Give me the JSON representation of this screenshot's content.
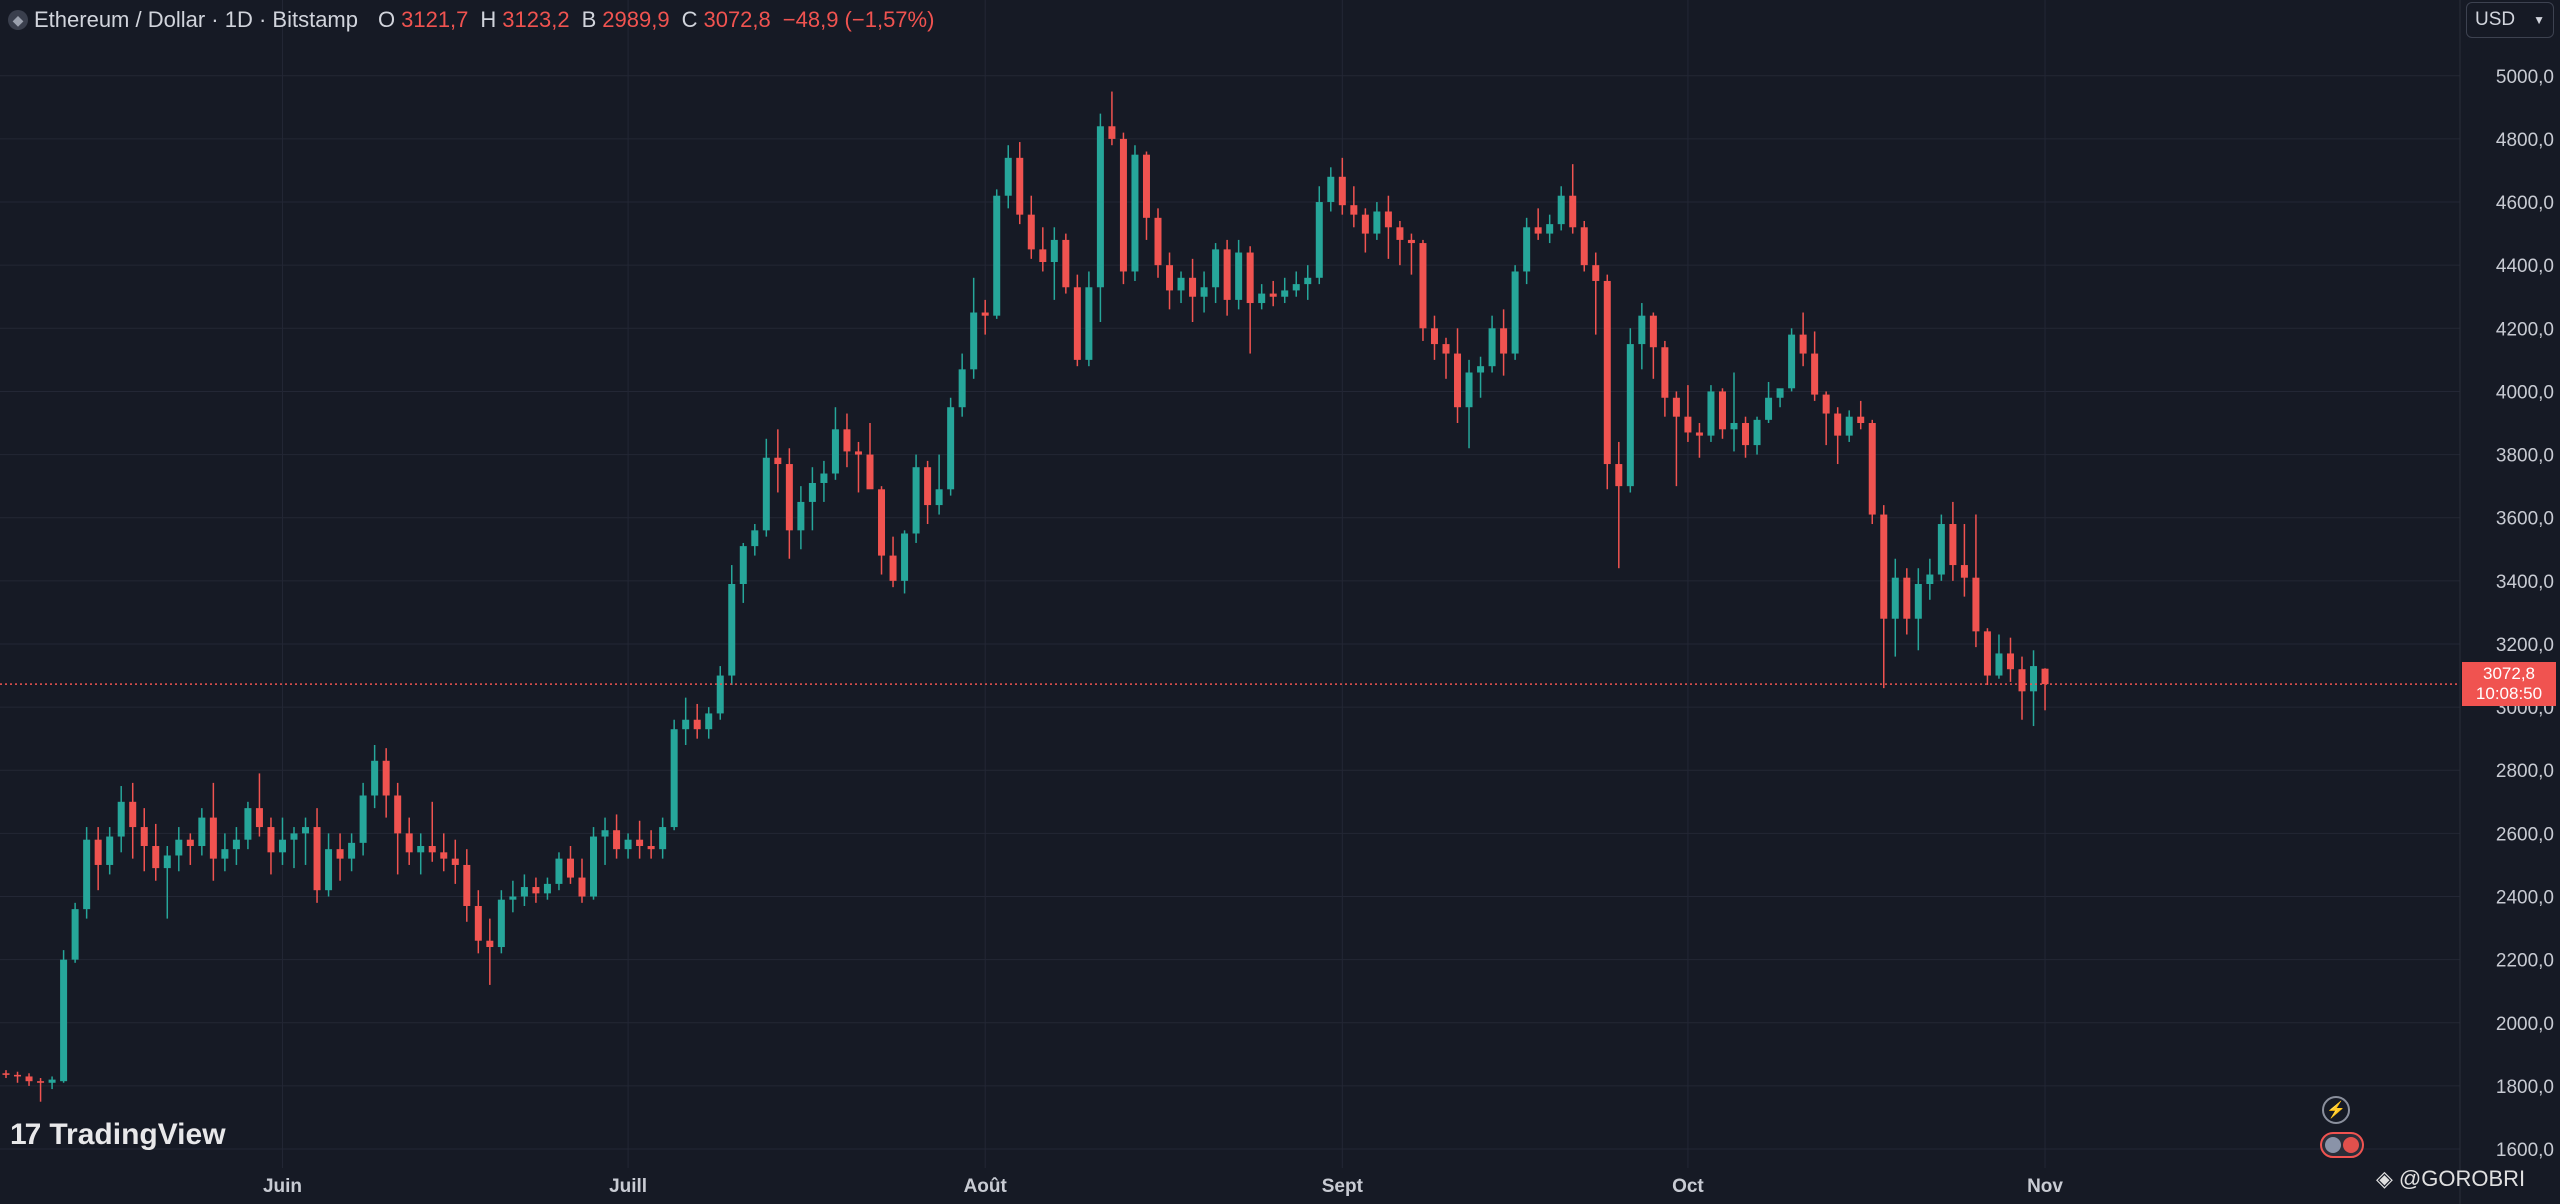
{
  "header": {
    "title": "Ethereum / Dollar · 1D · Bitstamp",
    "open_label": "O",
    "open": "3121,7",
    "high_label": "H",
    "high": "3123,2",
    "low_label": "B",
    "low": "2989,9",
    "close_label": "C",
    "close": "3072,8",
    "change": "−48,9 (−1,57%)"
  },
  "currency": {
    "selected": "USD"
  },
  "logo": {
    "mark": "17",
    "text": "TradingView"
  },
  "watermark": {
    "text": "@GOROBRI"
  },
  "last_price": {
    "value": "3072,8",
    "countdown": "10:08:50"
  },
  "colors": {
    "up": "#26a69a",
    "down": "#f05350",
    "background": "#161a25",
    "grid": "#232735"
  },
  "icons": [
    "ethereum-icon",
    "chevron-down-icon",
    "lightning-icon",
    "flag-icon",
    "binance-icon"
  ],
  "chart_data": {
    "type": "candlestick",
    "title": "Ethereum / Dollar · 1D · Bitstamp",
    "y_ticks": [
      "1600,0",
      "1800,0",
      "2000,0",
      "2200,0",
      "2400,0",
      "2600,0",
      "2800,0",
      "3000,0",
      "3200,0",
      "3400,0",
      "3600,0",
      "3800,0",
      "4000,0",
      "4200,0",
      "4400,0",
      "4600,0",
      "4800,0",
      "5000,0"
    ],
    "ylim": [
      1540,
      5240
    ],
    "x_labels": [
      {
        "label": "Juin",
        "index": 24
      },
      {
        "label": "Juill",
        "index": 54
      },
      {
        "label": "Août",
        "index": 85
      },
      {
        "label": "Sept",
        "index": 116
      },
      {
        "label": "Oct",
        "index": 146
      },
      {
        "label": "Nov",
        "index": 177
      }
    ],
    "last_price": 3072.8,
    "candles": [
      [
        1840,
        1850,
        1825,
        1835
      ],
      [
        1835,
        1845,
        1810,
        1830
      ],
      [
        1830,
        1840,
        1800,
        1815
      ],
      [
        1815,
        1825,
        1750,
        1810
      ],
      [
        1810,
        1830,
        1790,
        1820
      ],
      [
        1815,
        2230,
        1810,
        2200
      ],
      [
        2200,
        2380,
        2190,
        2360
      ],
      [
        2360,
        2620,
        2330,
        2580
      ],
      [
        2580,
        2620,
        2420,
        2500
      ],
      [
        2500,
        2620,
        2470,
        2590
      ],
      [
        2590,
        2750,
        2540,
        2700
      ],
      [
        2700,
        2760,
        2520,
        2620
      ],
      [
        2620,
        2680,
        2480,
        2560
      ],
      [
        2560,
        2630,
        2450,
        2490
      ],
      [
        2490,
        2560,
        2330,
        2530
      ],
      [
        2530,
        2620,
        2480,
        2580
      ],
      [
        2580,
        2600,
        2500,
        2560
      ],
      [
        2560,
        2680,
        2530,
        2650
      ],
      [
        2650,
        2760,
        2450,
        2520
      ],
      [
        2520,
        2600,
        2480,
        2550
      ],
      [
        2550,
        2620,
        2500,
        2580
      ],
      [
        2580,
        2700,
        2550,
        2680
      ],
      [
        2680,
        2790,
        2590,
        2620
      ],
      [
        2620,
        2650,
        2470,
        2540
      ],
      [
        2540,
        2650,
        2500,
        2580
      ],
      [
        2580,
        2620,
        2490,
        2600
      ],
      [
        2600,
        2650,
        2500,
        2620
      ],
      [
        2620,
        2680,
        2380,
        2420
      ],
      [
        2420,
        2600,
        2400,
        2550
      ],
      [
        2550,
        2600,
        2450,
        2520
      ],
      [
        2520,
        2600,
        2480,
        2570
      ],
      [
        2570,
        2760,
        2530,
        2720
      ],
      [
        2720,
        2880,
        2680,
        2830
      ],
      [
        2830,
        2870,
        2650,
        2720
      ],
      [
        2720,
        2760,
        2470,
        2600
      ],
      [
        2600,
        2650,
        2500,
        2540
      ],
      [
        2540,
        2600,
        2470,
        2560
      ],
      [
        2560,
        2700,
        2510,
        2540
      ],
      [
        2540,
        2600,
        2480,
        2520
      ],
      [
        2520,
        2580,
        2440,
        2500
      ],
      [
        2500,
        2550,
        2320,
        2370
      ],
      [
        2370,
        2420,
        2220,
        2260
      ],
      [
        2260,
        2330,
        2120,
        2240
      ],
      [
        2240,
        2420,
        2220,
        2390
      ],
      [
        2390,
        2450,
        2350,
        2400
      ],
      [
        2400,
        2470,
        2370,
        2430
      ],
      [
        2430,
        2460,
        2380,
        2410
      ],
      [
        2410,
        2460,
        2390,
        2440
      ],
      [
        2440,
        2540,
        2420,
        2520
      ],
      [
        2520,
        2560,
        2440,
        2460
      ],
      [
        2460,
        2520,
        2380,
        2400
      ],
      [
        2400,
        2620,
        2390,
        2590
      ],
      [
        2590,
        2650,
        2500,
        2610
      ],
      [
        2610,
        2660,
        2520,
        2550
      ],
      [
        2550,
        2600,
        2520,
        2580
      ],
      [
        2580,
        2640,
        2520,
        2560
      ],
      [
        2560,
        2610,
        2520,
        2550
      ],
      [
        2550,
        2650,
        2520,
        2620
      ],
      [
        2620,
        2960,
        2610,
        2930
      ],
      [
        2930,
        3030,
        2880,
        2960
      ],
      [
        2960,
        3010,
        2900,
        2930
      ],
      [
        2930,
        3000,
        2900,
        2980
      ],
      [
        2980,
        3130,
        2960,
        3100
      ],
      [
        3100,
        3450,
        3070,
        3390
      ],
      [
        3390,
        3520,
        3330,
        3510
      ],
      [
        3510,
        3580,
        3480,
        3560
      ],
      [
        3560,
        3850,
        3540,
        3790
      ],
      [
        3790,
        3880,
        3680,
        3770
      ],
      [
        3770,
        3820,
        3470,
        3560
      ],
      [
        3560,
        3700,
        3500,
        3650
      ],
      [
        3650,
        3760,
        3560,
        3710
      ],
      [
        3710,
        3780,
        3650,
        3740
      ],
      [
        3740,
        3950,
        3720,
        3880
      ],
      [
        3880,
        3930,
        3760,
        3810
      ],
      [
        3810,
        3840,
        3680,
        3800
      ],
      [
        3800,
        3900,
        3700,
        3690
      ],
      [
        3690,
        3700,
        3420,
        3480
      ],
      [
        3480,
        3540,
        3380,
        3400
      ],
      [
        3400,
        3560,
        3360,
        3550
      ],
      [
        3550,
        3800,
        3520,
        3760
      ],
      [
        3760,
        3780,
        3580,
        3640
      ],
      [
        3640,
        3800,
        3610,
        3690
      ],
      [
        3690,
        3980,
        3670,
        3950
      ],
      [
        3950,
        4120,
        3920,
        4070
      ],
      [
        4070,
        4360,
        4040,
        4250
      ],
      [
        4250,
        4290,
        4180,
        4240
      ],
      [
        4240,
        4640,
        4230,
        4620
      ],
      [
        4620,
        4780,
        4580,
        4740
      ],
      [
        4740,
        4790,
        4530,
        4560
      ],
      [
        4560,
        4620,
        4420,
        4450
      ],
      [
        4450,
        4520,
        4380,
        4410
      ],
      [
        4410,
        4520,
        4290,
        4480
      ],
      [
        4480,
        4500,
        4310,
        4330
      ],
      [
        4330,
        4370,
        4080,
        4100
      ],
      [
        4100,
        4380,
        4080,
        4330
      ],
      [
        4330,
        4880,
        4220,
        4840
      ],
      [
        4840,
        4950,
        4780,
        4800
      ],
      [
        4800,
        4820,
        4340,
        4380
      ],
      [
        4380,
        4780,
        4350,
        4750
      ],
      [
        4750,
        4760,
        4480,
        4550
      ],
      [
        4550,
        4580,
        4360,
        4400
      ],
      [
        4400,
        4440,
        4260,
        4320
      ],
      [
        4320,
        4380,
        4280,
        4360
      ],
      [
        4360,
        4420,
        4220,
        4300
      ],
      [
        4300,
        4380,
        4250,
        4330
      ],
      [
        4330,
        4470,
        4280,
        4450
      ],
      [
        4450,
        4480,
        4240,
        4290
      ],
      [
        4290,
        4480,
        4260,
        4440
      ],
      [
        4440,
        4460,
        4120,
        4280
      ],
      [
        4280,
        4340,
        4260,
        4310
      ],
      [
        4310,
        4350,
        4270,
        4300
      ],
      [
        4300,
        4360,
        4280,
        4320
      ],
      [
        4320,
        4380,
        4300,
        4340
      ],
      [
        4340,
        4400,
        4290,
        4360
      ],
      [
        4360,
        4650,
        4340,
        4600
      ],
      [
        4600,
        4710,
        4570,
        4680
      ],
      [
        4680,
        4740,
        4560,
        4590
      ],
      [
        4590,
        4650,
        4520,
        4560
      ],
      [
        4560,
        4580,
        4440,
        4500
      ],
      [
        4500,
        4600,
        4480,
        4570
      ],
      [
        4570,
        4620,
        4420,
        4520
      ],
      [
        4520,
        4540,
        4400,
        4480
      ],
      [
        4480,
        4500,
        4370,
        4470
      ],
      [
        4470,
        4480,
        4160,
        4200
      ],
      [
        4200,
        4240,
        4100,
        4150
      ],
      [
        4150,
        4170,
        4040,
        4120
      ],
      [
        4120,
        4200,
        3900,
        3950
      ],
      [
        3950,
        4100,
        3820,
        4060
      ],
      [
        4060,
        4110,
        3980,
        4080
      ],
      [
        4080,
        4240,
        4060,
        4200
      ],
      [
        4200,
        4260,
        4050,
        4120
      ],
      [
        4120,
        4400,
        4100,
        4380
      ],
      [
        4380,
        4550,
        4340,
        4520
      ],
      [
        4520,
        4580,
        4480,
        4500
      ],
      [
        4500,
        4560,
        4470,
        4530
      ],
      [
        4530,
        4650,
        4510,
        4620
      ],
      [
        4620,
        4720,
        4500,
        4520
      ],
      [
        4520,
        4540,
        4380,
        4400
      ],
      [
        4400,
        4440,
        4180,
        4350
      ],
      [
        4350,
        4370,
        3690,
        3770
      ],
      [
        3770,
        3840,
        3440,
        3700
      ],
      [
        3700,
        4200,
        3680,
        4150
      ],
      [
        4150,
        4280,
        4070,
        4240
      ],
      [
        4240,
        4250,
        4040,
        4140
      ],
      [
        4140,
        4160,
        3920,
        3980
      ],
      [
        3980,
        4000,
        3700,
        3920
      ],
      [
        3920,
        4020,
        3840,
        3870
      ],
      [
        3870,
        3900,
        3790,
        3860
      ],
      [
        3860,
        4020,
        3840,
        4000
      ],
      [
        4000,
        4010,
        3850,
        3880
      ],
      [
        3880,
        4060,
        3810,
        3900
      ],
      [
        3900,
        3920,
        3790,
        3830
      ],
      [
        3830,
        3920,
        3800,
        3910
      ],
      [
        3910,
        4030,
        3900,
        3980
      ],
      [
        3980,
        4000,
        3950,
        4010
      ],
      [
        4010,
        4200,
        4000,
        4180
      ],
      [
        4180,
        4250,
        4080,
        4120
      ],
      [
        4120,
        4190,
        3970,
        3990
      ],
      [
        3990,
        4000,
        3830,
        3930
      ],
      [
        3930,
        3950,
        3770,
        3860
      ],
      [
        3860,
        3940,
        3840,
        3920
      ],
      [
        3920,
        3970,
        3880,
        3900
      ],
      [
        3900,
        3910,
        3580,
        3610
      ],
      [
        3610,
        3640,
        3060,
        3280
      ],
      [
        3280,
        3470,
        3160,
        3410
      ],
      [
        3410,
        3440,
        3230,
        3280
      ],
      [
        3280,
        3440,
        3180,
        3390
      ],
      [
        3390,
        3470,
        3340,
        3420
      ],
      [
        3420,
        3610,
        3400,
        3580
      ],
      [
        3580,
        3650,
        3400,
        3450
      ],
      [
        3450,
        3580,
        3350,
        3410
      ],
      [
        3410,
        3610,
        3190,
        3240
      ],
      [
        3240,
        3250,
        3070,
        3100
      ],
      [
        3100,
        3230,
        3090,
        3170
      ],
      [
        3170,
        3220,
        3080,
        3120
      ],
      [
        3120,
        3160,
        2960,
        3050
      ],
      [
        3050,
        3180,
        2940,
        3130
      ],
      [
        3121.7,
        3123.2,
        2989.9,
        3072.8
      ]
    ]
  }
}
